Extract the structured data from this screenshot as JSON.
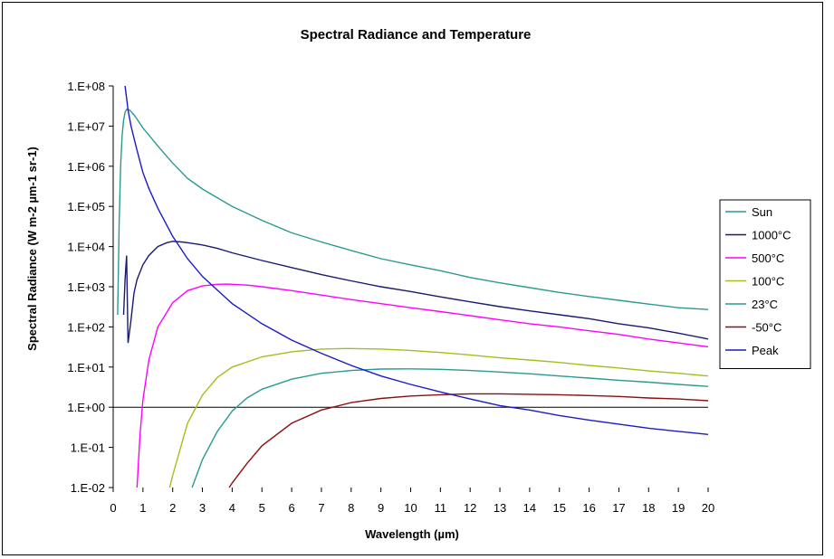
{
  "chart_data": {
    "type": "line",
    "title": "Spectral Radiance and Temperature",
    "xlabel": "Wavelength (µm)",
    "ylabel": "Spectral Radiance (W m-2 µm-1 sr-1)",
    "xlim": [
      0,
      20
    ],
    "ylim": [
      0.01,
      100000000
    ],
    "y_scale": "log",
    "x_ticks": [
      "0",
      "1",
      "2",
      "3",
      "4",
      "5",
      "6",
      "7",
      "8",
      "9",
      "10",
      "11",
      "12",
      "13",
      "14",
      "15",
      "16",
      "17",
      "18",
      "19",
      "20"
    ],
    "y_ticks": [
      {
        "value": 100000000,
        "label": "1.E+08"
      },
      {
        "value": 10000000,
        "label": "1.E+07"
      },
      {
        "value": 1000000,
        "label": "1.E+06"
      },
      {
        "value": 100000,
        "label": "1.E+05"
      },
      {
        "value": 10000,
        "label": "1.E+04"
      },
      {
        "value": 1000,
        "label": "1.E+03"
      },
      {
        "value": 100,
        "label": "1.E+02"
      },
      {
        "value": 10,
        "label": "1.E+01"
      },
      {
        "value": 1,
        "label": "1.E+00"
      },
      {
        "value": 0.1,
        "label": "1.E-01"
      },
      {
        "value": 0.01,
        "label": "1.E-02"
      }
    ],
    "reference_line_y": 1,
    "grid": false,
    "legend_position": "right",
    "series": [
      {
        "name": "Sun",
        "color": "#2a9a90",
        "x": [
          0.15,
          0.18,
          0.2,
          0.25,
          0.3,
          0.35,
          0.4,
          0.45,
          0.5,
          0.55,
          0.6,
          0.7,
          0.8,
          1,
          1.2,
          1.5,
          2,
          2.5,
          3,
          4,
          5,
          6,
          7,
          8,
          9,
          10,
          11,
          12,
          13,
          14,
          15,
          16,
          17,
          18,
          19,
          20
        ],
        "y": [
          200,
          4000,
          40000,
          1000000,
          6000000,
          14000000,
          22000000,
          26000000,
          26000000,
          25000000,
          23000000,
          19000000,
          15000000,
          9000000,
          6000000,
          3200000,
          1200000,
          500000,
          270000,
          100000,
          45000,
          22000,
          13000,
          8000,
          5000,
          3500,
          2500,
          1700,
          1250,
          950,
          720,
          570,
          460,
          370,
          300,
          270
        ]
      },
      {
        "name": "1000°C",
        "color": "#1a1a70",
        "x": [
          0.35,
          0.4,
          0.45,
          0.5,
          0.6,
          0.7,
          0.8,
          1,
          1.2,
          1.5,
          1.8,
          2,
          2.3,
          2.5,
          3,
          3.5,
          4,
          5,
          6,
          7,
          8,
          9,
          10,
          11,
          12,
          13,
          14,
          15,
          16,
          17,
          18,
          19,
          20
        ],
        "y": [
          200,
          1500,
          6000,
          40,
          150,
          700,
          1500,
          3500,
          6000,
          10000,
          12500,
          13500,
          13000,
          12500,
          11000,
          9000,
          7000,
          4500,
          3000,
          2000,
          1400,
          1000,
          760,
          560,
          420,
          320,
          250,
          200,
          160,
          120,
          95,
          70,
          50
        ]
      },
      {
        "name": "500°C",
        "color": "#ff00ff",
        "x": [
          0.8,
          0.9,
          1,
          1.2,
          1.5,
          2,
          2.5,
          3,
          3.5,
          3.8,
          4,
          4.5,
          5,
          6,
          7,
          8,
          9,
          10,
          11,
          12,
          13,
          14,
          15,
          16,
          17,
          18,
          19,
          20
        ],
        "y": [
          0.01,
          0.2,
          1.5,
          15,
          100,
          400,
          800,
          1050,
          1150,
          1160,
          1150,
          1100,
          1000,
          800,
          620,
          480,
          380,
          300,
          240,
          190,
          150,
          120,
          100,
          80,
          65,
          50,
          40,
          32
        ]
      },
      {
        "name": "100°C",
        "color": "#a0c020",
        "x": [
          1.9,
          2,
          2.5,
          3,
          3.5,
          4,
          5,
          6,
          7,
          7.8,
          8,
          9,
          10,
          11,
          12,
          13,
          14,
          15,
          16,
          17,
          18,
          19,
          20
        ],
        "y": [
          0.01,
          0.02,
          0.4,
          2,
          5.5,
          10,
          18,
          24,
          28,
          29,
          29,
          28,
          26,
          23,
          20,
          17,
          15,
          13,
          11,
          9.5,
          8,
          7,
          6
        ]
      },
      {
        "name": "23°C",
        "color": "#2a9a90",
        "x": [
          2.65,
          3,
          3.5,
          4,
          4.5,
          5,
          6,
          7,
          8,
          9,
          9.8,
          10,
          11,
          12,
          13,
          14,
          15,
          16,
          17,
          18,
          19,
          20
        ],
        "y": [
          0.01,
          0.05,
          0.25,
          0.8,
          1.7,
          2.8,
          5,
          7,
          8.2,
          8.9,
          9,
          9,
          8.8,
          8.2,
          7.5,
          6.8,
          6,
          5.3,
          4.7,
          4.2,
          3.7,
          3.3
        ]
      },
      {
        "name": "-50°C",
        "color": "#8b1010",
        "x": [
          3.9,
          4,
          4.5,
          5,
          6,
          7,
          8,
          9,
          10,
          11,
          12,
          13,
          14,
          15,
          16,
          17,
          18,
          19,
          20
        ],
        "y": [
          0.01,
          0.013,
          0.04,
          0.11,
          0.4,
          0.85,
          1.3,
          1.65,
          1.9,
          2.05,
          2.15,
          2.15,
          2.1,
          2.05,
          1.95,
          1.85,
          1.7,
          1.6,
          1.45
        ]
      },
      {
        "name": "Peak",
        "color": "#1a1acc",
        "x": [
          0.4,
          0.45,
          0.5,
          0.6,
          0.7,
          0.8,
          1,
          1.2,
          1.5,
          2,
          2.5,
          3,
          4,
          5,
          6,
          7,
          8,
          9,
          10,
          11,
          12,
          13,
          14,
          15,
          16,
          17,
          18,
          19,
          20
        ],
        "y": [
          100000000,
          50000000,
          25000000,
          10000000,
          5000000,
          2500000,
          700000,
          280000,
          90000,
          18000,
          5000,
          1800,
          380,
          120,
          47,
          22,
          11,
          6,
          3.7,
          2.4,
          1.6,
          1.1,
          0.85,
          0.62,
          0.48,
          0.38,
          0.3,
          0.25,
          0.21
        ]
      }
    ]
  }
}
